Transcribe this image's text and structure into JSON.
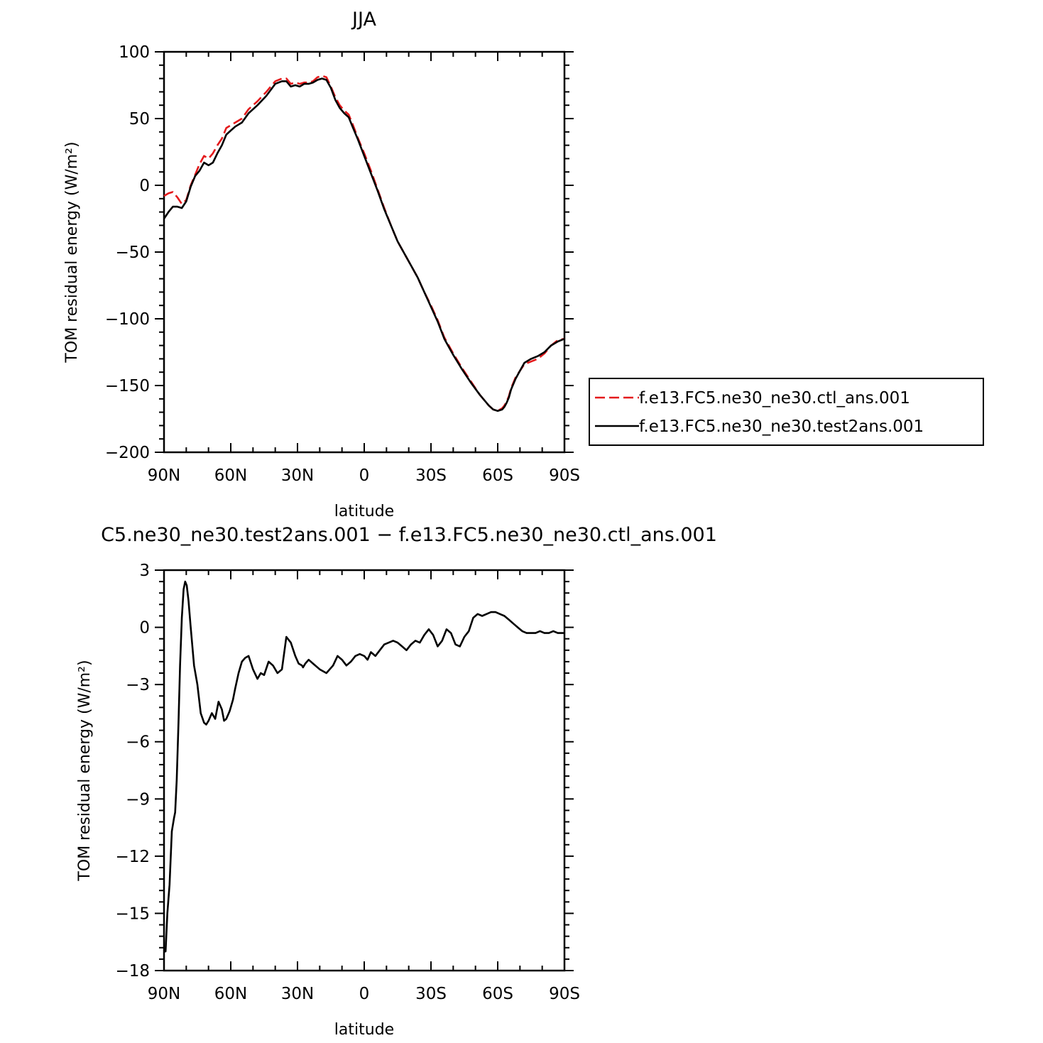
{
  "chart_data": [
    {
      "type": "line",
      "title": "JJA",
      "xlabel": "latitude",
      "ylabel": "TOM residual energy (W/m²)",
      "xlim": [
        90,
        -90
      ],
      "ylim": [
        -200,
        100
      ],
      "xticks": [
        90,
        60,
        30,
        0,
        -30,
        -60,
        -90
      ],
      "xtick_labels": [
        "90N",
        "60N",
        "30N",
        "0",
        "30S",
        "60S",
        "90S"
      ],
      "yticks": [
        100,
        50,
        0,
        -50,
        -100,
        -150,
        -200
      ],
      "ytick_labels": [
        "100",
        "50",
        "0",
        "−50",
        "−100",
        "−150",
        "−200"
      ],
      "legend_position": "right",
      "series": [
        {
          "name": "f.e13.FC5.ne30_ne30.ctl_ans.001",
          "color": "#e41a1c",
          "dash": "dashed",
          "x": [
            90,
            88,
            86,
            84,
            82,
            80,
            78,
            76,
            74,
            72,
            70,
            68,
            66,
            64,
            62,
            60,
            58,
            55,
            52,
            48,
            44,
            40,
            37,
            35,
            33,
            31,
            29,
            27,
            25,
            23,
            21,
            19,
            17,
            15,
            13,
            11,
            9,
            7,
            5,
            3,
            0,
            -3,
            -6,
            -9,
            -12,
            -15,
            -18,
            -21,
            -24,
            -27,
            -30,
            -33,
            -36,
            -40,
            -44,
            -48,
            -52,
            -56,
            -58,
            -60,
            -62,
            -63,
            -64,
            -65,
            -66,
            -68,
            -70,
            -72,
            -75,
            -78,
            -81,
            -84,
            -87,
            -90
          ],
          "y": [
            -8,
            -6,
            -5,
            -9,
            -14,
            -11,
            0,
            8,
            16,
            22,
            20,
            24,
            30,
            35,
            43,
            45,
            47,
            50,
            57,
            63,
            70,
            78,
            80,
            80,
            76,
            77,
            76,
            77,
            77,
            78,
            81,
            82,
            81,
            74,
            66,
            60,
            56,
            53,
            45,
            36,
            24,
            11,
            -3,
            -17,
            -30,
            -42,
            -51,
            -60,
            -69,
            -80,
            -90,
            -101,
            -114,
            -126,
            -137,
            -147,
            -157,
            -165,
            -168,
            -169,
            -167,
            -165,
            -162,
            -158,
            -152,
            -144,
            -139,
            -134,
            -132,
            -130,
            -126,
            -120,
            -116,
            -115
          ]
        },
        {
          "name": "f.e13.FC5.ne30_ne30.test2ans.001",
          "color": "#000000",
          "dash": "solid",
          "x": [
            90,
            88,
            86,
            84,
            82,
            80,
            78,
            76,
            74,
            72,
            70,
            68,
            66,
            64,
            62,
            60,
            58,
            55,
            52,
            48,
            44,
            40,
            37,
            35,
            33,
            31,
            29,
            27,
            25,
            23,
            21,
            19,
            17,
            15,
            13,
            11,
            9,
            7,
            5,
            3,
            0,
            -3,
            -6,
            -9,
            -12,
            -15,
            -18,
            -21,
            -24,
            -27,
            -30,
            -33,
            -36,
            -40,
            -44,
            -48,
            -52,
            -56,
            -58,
            -60,
            -62,
            -63,
            -64,
            -65,
            -66,
            -68,
            -70,
            -72,
            -75,
            -78,
            -81,
            -84,
            -87,
            -90
          ],
          "y": [
            -25,
            -20,
            -16,
            -16,
            -17,
            -12,
            -1,
            7,
            11,
            17,
            15,
            17,
            24,
            30,
            38,
            41,
            44,
            47,
            54,
            60,
            67,
            76,
            78,
            78,
            74,
            75,
            74,
            76,
            76,
            77,
            79,
            80,
            79,
            73,
            64,
            58,
            54,
            51,
            43,
            35,
            22,
            9,
            -4,
            -18,
            -30,
            -42,
            -51,
            -60,
            -69,
            -80,
            -91,
            -102,
            -115,
            -127,
            -138,
            -148,
            -157,
            -165,
            -168,
            -169,
            -168,
            -166,
            -163,
            -159,
            -153,
            -145,
            -139,
            -133,
            -130,
            -128,
            -125,
            -120,
            -117,
            -115
          ]
        }
      ]
    },
    {
      "type": "line",
      "title": "C5.ne30_ne30.test2ans.001 − f.e13.FC5.ne30_ne30.ctl_ans.001",
      "xlabel": "latitude",
      "ylabel": "TOM residual energy (W/m²)",
      "xlim": [
        90,
        -90
      ],
      "ylim": [
        -18,
        3
      ],
      "xticks": [
        90,
        60,
        30,
        0,
        -30,
        -60,
        -90
      ],
      "xtick_labels": [
        "90N",
        "60N",
        "30N",
        "0",
        "30S",
        "60S",
        "90S"
      ],
      "yticks": [
        3,
        0,
        -3,
        -6,
        -9,
        -12,
        -15,
        -18
      ],
      "ytick_labels": [
        "3",
        "0",
        "−3",
        "−6",
        "−9",
        "−12",
        "−15",
        "−18"
      ],
      "series": [
        {
          "color": "#000000",
          "dash": "solid",
          "x": [
            90,
            89.3,
            88.5,
            87.5,
            86.5,
            85.5,
            85,
            84.3,
            83.5,
            82.8,
            82,
            81.2,
            80.5,
            79.8,
            79,
            78,
            76.5,
            75,
            73.5,
            72,
            71,
            70,
            68.5,
            67,
            65.5,
            64,
            63,
            62,
            60.5,
            59,
            58,
            56.5,
            55,
            53.5,
            52,
            50,
            48,
            46.5,
            45,
            43,
            41,
            39,
            37,
            35,
            33,
            31,
            29.5,
            28,
            27.5,
            26.5,
            25,
            23,
            20,
            17,
            14,
            12,
            10,
            8,
            6,
            4,
            2,
            0,
            -1.5,
            -3,
            -5,
            -7,
            -9,
            -11,
            -13,
            -15,
            -17,
            -19,
            -21,
            -23,
            -25,
            -27,
            -29,
            -31,
            -33,
            -35,
            -37,
            -39,
            -41,
            -43,
            -45,
            -47,
            -49,
            -51,
            -53,
            -55,
            -57,
            -59,
            -61,
            -63,
            -65,
            -67,
            -69,
            -71,
            -73,
            -75,
            -77,
            -79,
            -81,
            -83,
            -85,
            -87,
            -88.5,
            -90
          ],
          "y": [
            -17,
            -17,
            -15,
            -13.5,
            -10.7,
            -10,
            -9.7,
            -8,
            -5,
            -2,
            0.5,
            2,
            2.4,
            2.2,
            1.4,
            0,
            -2,
            -3,
            -4.5,
            -5,
            -5.1,
            -4.9,
            -4.5,
            -4.8,
            -3.9,
            -4.3,
            -4.9,
            -4.8,
            -4.4,
            -3.8,
            -3.2,
            -2.4,
            -1.8,
            -1.6,
            -1.5,
            -2.2,
            -2.7,
            -2.4,
            -2.5,
            -1.8,
            -2.0,
            -2.4,
            -2.2,
            -0.5,
            -0.8,
            -1.5,
            -1.9,
            -2.0,
            -2.1,
            -1.9,
            -1.7,
            -1.9,
            -2.2,
            -2.4,
            -2.0,
            -1.5,
            -1.7,
            -2.0,
            -1.8,
            -1.5,
            -1.4,
            -1.5,
            -1.7,
            -1.3,
            -1.5,
            -1.2,
            -0.9,
            -0.8,
            -0.7,
            -0.8,
            -1.0,
            -1.2,
            -0.9,
            -0.7,
            -0.8,
            -0.4,
            -0.1,
            -0.4,
            -1.0,
            -0.7,
            -0.1,
            -0.3,
            -0.9,
            -1.0,
            -0.5,
            -0.2,
            0.5,
            0.7,
            0.6,
            0.7,
            0.8,
            0.8,
            0.7,
            0.6,
            0.4,
            0.2,
            0.0,
            -0.2,
            -0.3,
            -0.3,
            -0.3,
            -0.2,
            -0.3,
            -0.3,
            -0.2,
            -0.3,
            -0.3,
            -0.3
          ]
        }
      ]
    }
  ]
}
